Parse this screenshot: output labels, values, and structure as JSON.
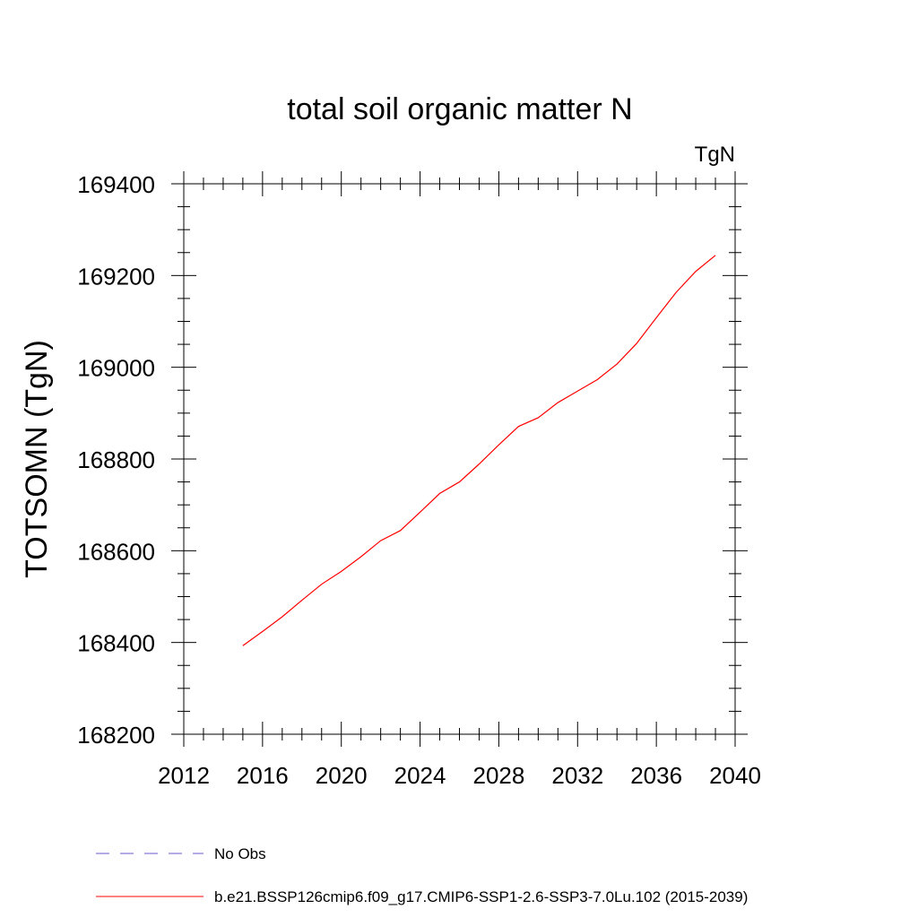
{
  "chart_data": {
    "type": "line",
    "title": "total soil organic matter N",
    "units": "TgN",
    "ylabel": "TOTSOMN  (TgN)",
    "xlabel": "",
    "xlim": [
      2012,
      2040
    ],
    "ylim": [
      168200,
      169400
    ],
    "xticks": [
      2012,
      2016,
      2020,
      2024,
      2028,
      2032,
      2036,
      2040
    ],
    "yticks": [
      168200,
      168400,
      168600,
      168800,
      169000,
      169200,
      169400
    ],
    "grid": false,
    "legend_position": "bottom",
    "series": [
      {
        "name": "No Obs",
        "color": "#6a5acd",
        "dash": "dashed",
        "x": [],
        "y": []
      },
      {
        "name": "b.e21.BSSP126cmip6.f09_g17.CMIP6-SSP1-2.6-SSP3-7.0Lu.102 (2015-2039)",
        "color": "#ff0000",
        "dash": "solid",
        "x": [
          2015,
          2016,
          2017,
          2018,
          2019,
          2020,
          2021,
          2022,
          2023,
          2024,
          2025,
          2026,
          2027,
          2028,
          2029,
          2030,
          2031,
          2032,
          2033,
          2034,
          2035,
          2036,
          2037,
          2038,
          2039
        ],
        "y": [
          168393,
          168424,
          168456,
          168492,
          168527,
          168555,
          168587,
          168622,
          168644,
          168684,
          168725,
          168750,
          168789,
          168831,
          168871,
          168890,
          168923,
          168948,
          168973,
          169007,
          169052,
          169108,
          169163,
          169209,
          169244
        ]
      }
    ]
  }
}
